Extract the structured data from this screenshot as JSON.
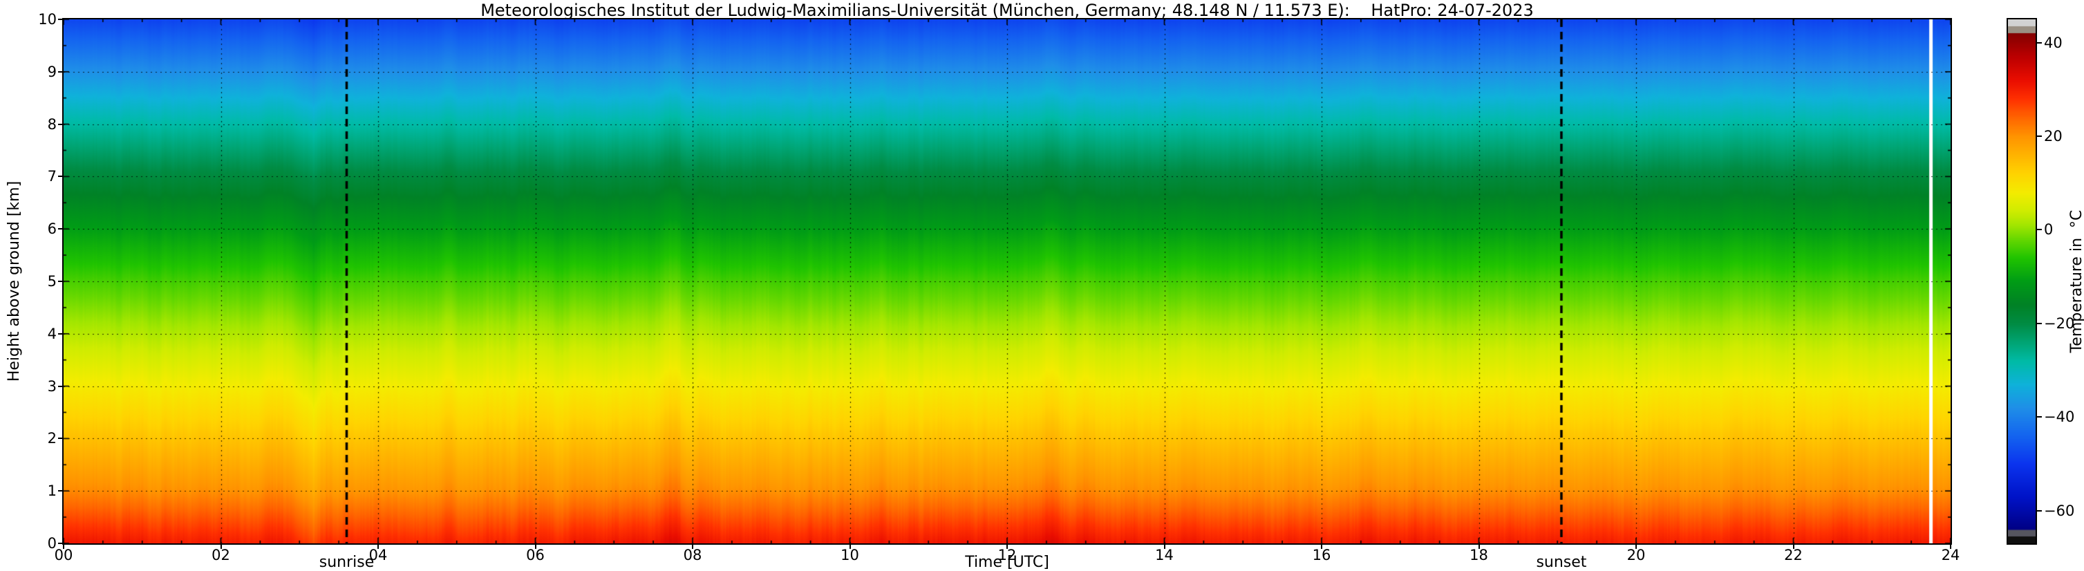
{
  "chart_data": {
    "type": "heatmap",
    "title": "Meteorologisches Institut der Ludwig-Maximilians-Universität (München, Germany; 48.148 N / 11.573 E):    HatPro: 24-07-2023",
    "xlabel": "Time [UTC]",
    "ylabel": "Height above ground [km]",
    "xlim": [
      0,
      24
    ],
    "ylim": [
      0,
      10
    ],
    "grid": true,
    "x_tick_values": [
      0,
      2,
      4,
      6,
      8,
      10,
      12,
      14,
      16,
      18,
      20,
      22,
      24
    ],
    "x_tick_labels": [
      "00",
      "02",
      "04",
      "06",
      "08",
      "10",
      "12",
      "14",
      "16",
      "18",
      "20",
      "22",
      "24"
    ],
    "y_tick_values": [
      0,
      1,
      2,
      3,
      4,
      5,
      6,
      7,
      8,
      9,
      10
    ],
    "y_tick_labels": [
      "0",
      "1",
      "2",
      "3",
      "4",
      "5",
      "6",
      "7",
      "8",
      "9",
      "10"
    ],
    "annotations": [
      {
        "label": "sunrise",
        "time_utc": 3.6
      },
      {
        "label": "sunset",
        "time_utc": 19.05
      }
    ],
    "data_gap_times_utc": [
      23.75
    ],
    "profile_heights_km": [
      0,
      0.2,
      1,
      2,
      3,
      4,
      5,
      6,
      7,
      8,
      9,
      10
    ],
    "profile_temps_c": [
      29.5,
      27.5,
      20,
      14,
      8,
      2,
      -4,
      -11,
      -19,
      -28,
      -38,
      -48
    ],
    "hourly_surface_anomaly_c": [
      1.2,
      1.0,
      0.8,
      0.3,
      0.0,
      -0.2,
      0.3,
      1.6,
      1.2,
      0.8,
      1.0,
      1.4,
      1.8,
      1.6,
      1.3,
      1.1,
      1.0,
      1.1,
      0.8,
      0.5,
      0.3,
      0.4,
      0.7,
      1.0
    ],
    "streaks": [
      {
        "t": 0.9,
        "dT": 0.8,
        "w": 0.07
      },
      {
        "t": 2.7,
        "dT": 1.6,
        "w": 0.1
      },
      {
        "t": 3.15,
        "dT": -3.5,
        "w": 0.09
      },
      {
        "t": 3.45,
        "dT": -1.4,
        "w": 0.06
      },
      {
        "t": 4.9,
        "dT": 0.8,
        "w": 0.08
      },
      {
        "t": 5.9,
        "dT": 0.6,
        "w": 0.07
      },
      {
        "t": 6.3,
        "dT": -0.7,
        "w": 0.06
      },
      {
        "t": 7.75,
        "dT": 2.4,
        "w": 0.1
      },
      {
        "t": 8.1,
        "dT": 1.0,
        "w": 0.06
      },
      {
        "t": 9.3,
        "dT": -0.8,
        "w": 0.07
      },
      {
        "t": 10.4,
        "dT": 1.1,
        "w": 0.08
      },
      {
        "t": 11.2,
        "dT": 0.7,
        "w": 0.06
      },
      {
        "t": 12.55,
        "dT": 2.2,
        "w": 0.1
      },
      {
        "t": 13.05,
        "dT": 1.1,
        "w": 0.07
      },
      {
        "t": 14.35,
        "dT": 0.9,
        "w": 0.08
      },
      {
        "t": 15.3,
        "dT": -0.6,
        "w": 0.07
      },
      {
        "t": 16.6,
        "dT": 1.4,
        "w": 0.09
      },
      {
        "t": 17.15,
        "dT": 0.7,
        "w": 0.06
      },
      {
        "t": 18.2,
        "dT": 0.5,
        "w": 0.07
      },
      {
        "t": 19.55,
        "dT": 0.6,
        "w": 0.08
      },
      {
        "t": 20.1,
        "dT": -0.5,
        "w": 0.07
      },
      {
        "t": 21.3,
        "dT": 1.0,
        "w": 0.09
      },
      {
        "t": 22.65,
        "dT": 0.8,
        "w": 0.07
      }
    ],
    "noise": {
      "coarse_amp": 0.7,
      "fine_amp": 0.5
    },
    "colormap": [
      {
        "t": -64,
        "color": "#000084"
      },
      {
        "t": -57,
        "color": "#0013c8"
      },
      {
        "t": -50,
        "color": "#0b34ee"
      },
      {
        "t": -44,
        "color": "#1464f0"
      },
      {
        "t": -38,
        "color": "#1f8fe8"
      },
      {
        "t": -33,
        "color": "#0fb2da"
      },
      {
        "t": -28,
        "color": "#00bba6"
      },
      {
        "t": -24,
        "color": "#00a574"
      },
      {
        "t": -20,
        "color": "#008c44"
      },
      {
        "t": -16,
        "color": "#008226"
      },
      {
        "t": -11,
        "color": "#009c16"
      },
      {
        "t": -6,
        "color": "#20c400"
      },
      {
        "t": -2,
        "color": "#66d800"
      },
      {
        "t": 1,
        "color": "#a2e600"
      },
      {
        "t": 4,
        "color": "#cfec00"
      },
      {
        "t": 8,
        "color": "#f4ec00"
      },
      {
        "t": 12,
        "color": "#ffd400"
      },
      {
        "t": 16,
        "color": "#ffb400"
      },
      {
        "t": 20,
        "color": "#ff9400"
      },
      {
        "t": 24,
        "color": "#ff6600"
      },
      {
        "t": 28,
        "color": "#ff3000"
      },
      {
        "t": 32,
        "color": "#ea0e00"
      },
      {
        "t": 37,
        "color": "#bc0000"
      },
      {
        "t": 42,
        "color": "#840000"
      }
    ],
    "colorbar": {
      "label": "Temperature in  °C",
      "vmin": -64,
      "vmax": 42,
      "tick_values": [
        40,
        20,
        0,
        -20,
        -40,
        -60
      ],
      "tick_labels": [
        "40",
        "20",
        "0",
        "−20",
        "−40",
        "−60"
      ],
      "top_extension_colors": [
        "#d2d2d2",
        "#9a9083"
      ],
      "bottom_extension_colors": [
        "#55555f",
        "#0f0f0f"
      ]
    }
  }
}
